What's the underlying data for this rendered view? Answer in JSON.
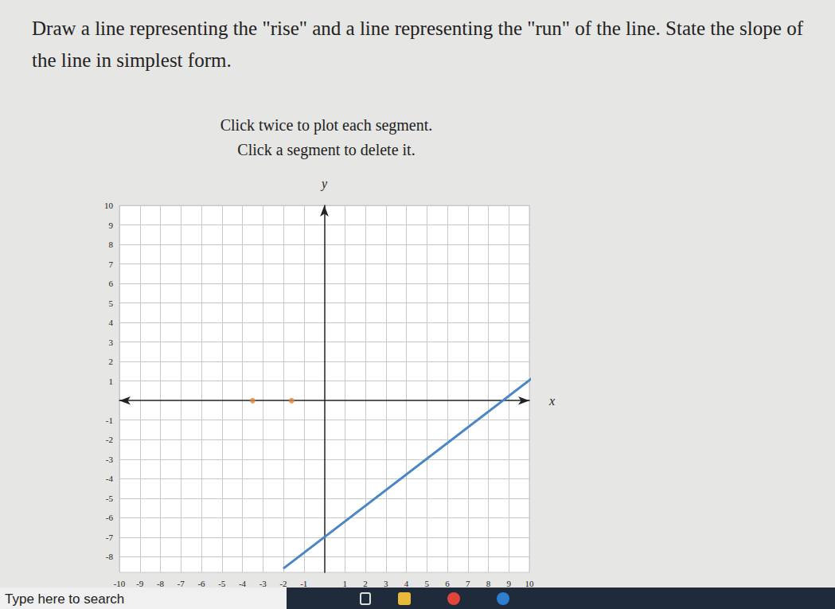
{
  "page": {
    "question": "Draw a line representing the \"rise\" and a line representing the \"run\" of the line. State the slope of the line in simplest form.",
    "instructions": [
      "Click twice to plot each segment.",
      "Click a segment to delete it."
    ]
  },
  "taskbar": {
    "search": "Type here to search"
  },
  "chart_data": {
    "type": "line",
    "x_label": "x",
    "y_label": "y",
    "grid": true,
    "xlim": [
      -10,
      10
    ],
    "ylim": [
      -8.8,
      10
    ],
    "xticks": [
      -10,
      -9,
      -8,
      -7,
      -6,
      -5,
      -4,
      -3,
      -2,
      -1,
      1,
      2,
      3,
      4,
      5,
      6,
      7,
      8,
      9,
      10
    ],
    "yticks": [
      -8,
      -7,
      -6,
      -5,
      -4,
      -3,
      -2,
      -1,
      1,
      2,
      3,
      4,
      5,
      6,
      7,
      8,
      9,
      10
    ],
    "series": [
      {
        "type": "line",
        "color": "#4a86c5",
        "marker": "arrow",
        "x": [
          -2,
          10.2
        ],
        "values": [
          -8.6,
          1.2
        ]
      },
      {
        "type": "scatter",
        "color": "#e0843a",
        "x": [
          -3.5,
          -1.6
        ],
        "values": [
          0,
          0
        ]
      }
    ]
  }
}
